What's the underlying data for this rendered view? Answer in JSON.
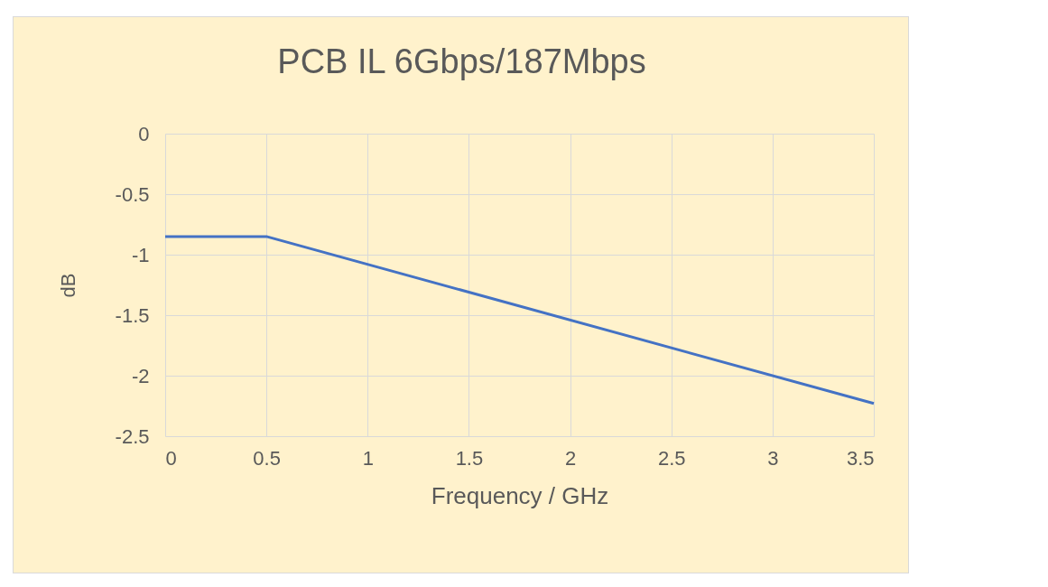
{
  "chart_data": {
    "type": "line",
    "title": "PCB IL 6Gbps/187Mbps",
    "xlabel": "Frequency / GHz",
    "ylabel": "dB",
    "x": [
      0,
      0.5,
      3.5
    ],
    "series": [
      {
        "color": "#4472c4",
        "values": [
          -0.85,
          -0.85,
          -2.23
        ]
      }
    ],
    "xlim": [
      0,
      3.5
    ],
    "xticks": [
      0,
      0.5,
      1,
      1.5,
      2,
      2.5,
      3,
      3.5
    ],
    "ylim": [
      -2.5,
      0
    ],
    "yticks": [
      -2.5,
      -2,
      -1.5,
      -1,
      -0.5,
      0
    ],
    "grid": true
  }
}
